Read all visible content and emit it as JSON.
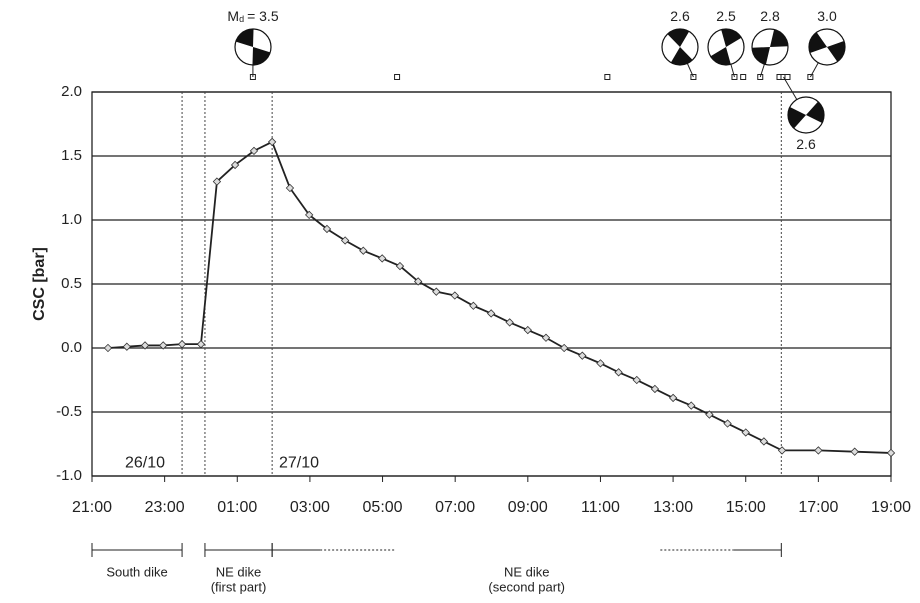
{
  "chart_data": {
    "type": "line",
    "y_label": "CSC [bar]",
    "xlim": [
      0,
      22
    ],
    "xticks": [
      {
        "value": 0,
        "label": "21:00"
      },
      {
        "value": 2,
        "label": "23:00"
      },
      {
        "value": 4,
        "label": "01:00"
      },
      {
        "value": 6,
        "label": "03:00"
      },
      {
        "value": 8,
        "label": "05:00"
      },
      {
        "value": 10,
        "label": "07:00"
      },
      {
        "value": 12,
        "label": "09:00"
      },
      {
        "value": 14,
        "label": "11:00"
      },
      {
        "value": 16,
        "label": "13:00"
      },
      {
        "value": 18,
        "label": "15:00"
      },
      {
        "value": 20,
        "label": "17:00"
      },
      {
        "value": 22,
        "label": "19:00"
      }
    ],
    "ylim": [
      -1.0,
      2.0
    ],
    "yticks": [
      {
        "value": 2.0,
        "label": "2.0"
      },
      1.5,
      {
        "value": 1.0,
        "label": "1.0"
      },
      0.5,
      {
        "value": 0.0,
        "label": "0.0"
      },
      -0.5,
      {
        "value": -1.0,
        "label": "-1.0"
      }
    ],
    "grid": true,
    "series": [
      {
        "color": "#222222",
        "x": [
          0.44,
          0.96,
          1.46,
          1.96,
          2.48,
          3.0,
          3.44,
          3.94,
          4.46,
          4.96,
          5.45,
          5.98,
          6.47,
          6.97,
          7.47,
          7.99,
          8.48,
          8.98,
          9.48,
          9.99,
          10.5,
          10.99,
          11.5,
          12.0,
          12.5,
          13.0,
          13.5,
          14.0,
          14.5,
          15.0,
          15.5,
          16.0,
          16.5,
          17.0,
          17.5,
          18.0,
          18.5,
          19.0,
          20.0,
          21.0,
          22.0
        ],
        "values": [
          0.0,
          0.01,
          0.02,
          0.02,
          0.03,
          0.03,
          1.3,
          1.43,
          1.54,
          1.61,
          1.25,
          1.04,
          0.93,
          0.84,
          0.76,
          0.7,
          0.64,
          0.52,
          0.44,
          0.41,
          0.33,
          0.27,
          0.2,
          0.14,
          0.08,
          0.0,
          -0.06,
          -0.12,
          -0.19,
          -0.25,
          -0.32,
          -0.39,
          -0.45,
          -0.52,
          -0.59,
          -0.66,
          -0.73,
          -0.8,
          -0.8,
          -0.81,
          -0.82
        ]
      }
    ],
    "vertical_lines": [
      2.48,
      3.11,
      4.96,
      18.98
    ],
    "date_labels": [
      {
        "x": 1.46,
        "label": "26/10"
      },
      {
        "x": 5.7,
        "label": "27/10"
      }
    ],
    "events": [
      4.43,
      8.4,
      14.19,
      16.56,
      17.69,
      17.93,
      18.4,
      18.93,
      19.04,
      19.15,
      19.78
    ],
    "focal_mechanisms": [
      {
        "event": 0,
        "label": [
          "M",
          "d",
          "= 3.5"
        ]
      },
      {
        "event": 3,
        "label": [
          "2.6"
        ]
      },
      {
        "event": 4,
        "label": [
          "2.5"
        ]
      },
      {
        "event": 6,
        "label": [
          "2.8"
        ]
      },
      {
        "event": 8,
        "label": [
          "2.6"
        ]
      },
      {
        "event": 10,
        "label": [
          "3.0"
        ]
      }
    ],
    "phases": [
      {
        "label": [
          "South dike"
        ],
        "start": 0,
        "end": 2.48
      },
      {
        "label": [
          "NE dike",
          "(first part)"
        ],
        "start": 3.11,
        "end": 4.96
      },
      {
        "label": [
          "NE dike",
          "(second part)"
        ],
        "start": 4.96,
        "end": 18.98
      }
    ]
  }
}
